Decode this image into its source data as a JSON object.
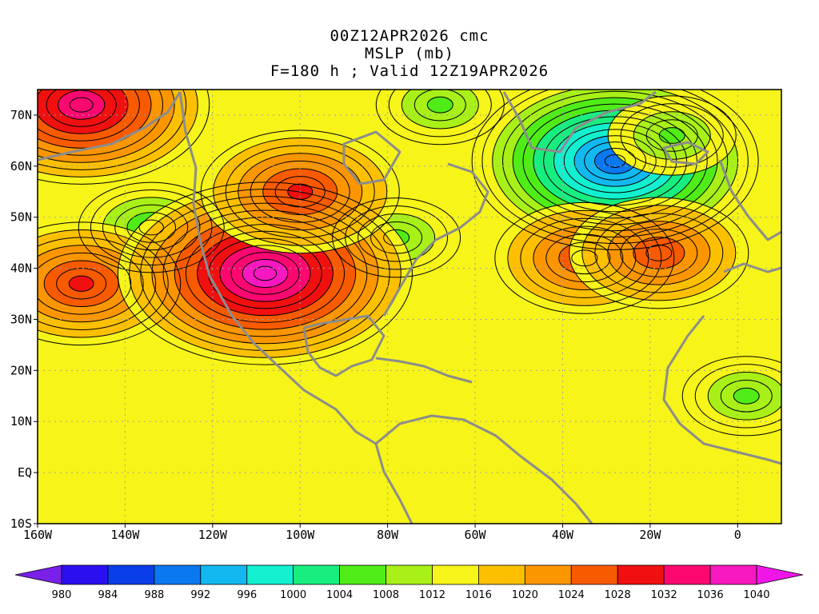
{
  "title": {
    "line1": "00Z12APR2026 cmc",
    "line2": "MSLP (mb)",
    "line3": "F=180 h ; Valid 12Z19APR2026"
  },
  "axes": {
    "lon_range": [
      -160,
      10
    ],
    "lat_range": [
      -10,
      75
    ],
    "lon_ticks": [
      {
        "value": -160,
        "label": "160W"
      },
      {
        "value": -140,
        "label": "140W"
      },
      {
        "value": -120,
        "label": "120W"
      },
      {
        "value": -100,
        "label": "100W"
      },
      {
        "value": -80,
        "label": "80W"
      },
      {
        "value": -60,
        "label": "60W"
      },
      {
        "value": -40,
        "label": "40W"
      },
      {
        "value": -20,
        "label": "20W"
      },
      {
        "value": 0,
        "label": "0"
      }
    ],
    "lat_ticks": [
      {
        "value": -10,
        "label": "10S"
      },
      {
        "value": 0,
        "label": "EQ"
      },
      {
        "value": 10,
        "label": "10N"
      },
      {
        "value": 20,
        "label": "20N"
      },
      {
        "value": 30,
        "label": "30N"
      },
      {
        "value": 40,
        "label": "40N"
      },
      {
        "value": 50,
        "label": "50N"
      },
      {
        "value": 60,
        "label": "60N"
      },
      {
        "value": 70,
        "label": "70N"
      }
    ],
    "grid": true
  },
  "colorbar": {
    "labels": [
      "980",
      "984",
      "988",
      "992",
      "996",
      "1000",
      "1004",
      "1008",
      "1012",
      "1016",
      "1020",
      "1024",
      "1028",
      "1032",
      "1036",
      "1040"
    ],
    "colors": [
      "#7a20e8",
      "#2a10f0",
      "#0a3ee8",
      "#0a78f0",
      "#12b8f0",
      "#12f0d0",
      "#18ee80",
      "#50ec18",
      "#a8f018",
      "#f6f418",
      "#fcc000",
      "#fc9600",
      "#f85a00",
      "#f01010",
      "#fc0870",
      "#f818c0",
      "#f016e8"
    ]
  },
  "field": {
    "background_value": 1014,
    "systems": [
      {
        "type": "low",
        "name": "iceland-low",
        "lon": -28,
        "lat": 61,
        "value": 988
      },
      {
        "type": "low",
        "name": "north-pacific-low",
        "lon": -134,
        "lat": 48,
        "value": 1004
      },
      {
        "type": "low",
        "name": "great-lakes-low",
        "lon": -78,
        "lat": 46,
        "value": 1006
      },
      {
        "type": "low",
        "name": "hudson-low",
        "lon": -68,
        "lat": 72,
        "value": 1006
      },
      {
        "type": "low",
        "name": "greenland-low",
        "lon": -15,
        "lat": 66,
        "value": 1006
      },
      {
        "type": "low",
        "name": "west-africa-low",
        "lon": 2,
        "lat": 15,
        "value": 1006
      },
      {
        "type": "high",
        "name": "pacific-high",
        "lon": -150,
        "lat": 37,
        "value": 1028
      },
      {
        "type": "high",
        "name": "rockies-high",
        "lon": -108,
        "lat": 39,
        "value": 1038
      },
      {
        "type": "high",
        "name": "plains-high",
        "lon": -100,
        "lat": 55,
        "value": 1028
      },
      {
        "type": "high",
        "name": "arctic-high",
        "lon": -150,
        "lat": 72,
        "value": 1034
      },
      {
        "type": "high",
        "name": "azores-high",
        "lon": -35,
        "lat": 42,
        "value": 1026
      },
      {
        "type": "high",
        "name": "east-atlantic-high",
        "lon": -18,
        "lat": 43,
        "value": 1026
      }
    ]
  },
  "colors": {
    "land_outline": "#8c8c8c",
    "grid_line": "#a0a0a0",
    "contour_line": "#000000"
  }
}
